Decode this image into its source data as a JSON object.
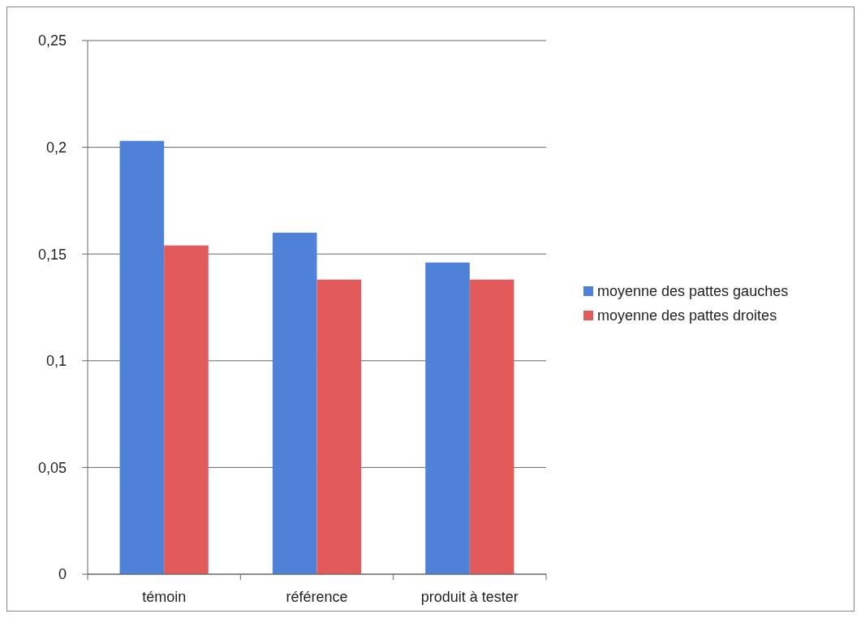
{
  "chart_data": {
    "type": "bar",
    "categories": [
      "témoin",
      "référence",
      "produit à tester"
    ],
    "series": [
      {
        "name": "moyenne des pattes gauches",
        "color": "#4f81d9",
        "values": [
          0.203,
          0.16,
          0.146
        ]
      },
      {
        "name": "moyenne des pattes droites",
        "color": "#e35a5a",
        "values": [
          0.154,
          0.138,
          0.138
        ]
      }
    ],
    "ylim": [
      0,
      0.25
    ],
    "yticks": [
      0,
      {
        "value": 0.05,
        "label": "0,05"
      },
      {
        "value": 0.1,
        "label": "0,1"
      },
      {
        "value": 0.15,
        "label": "0,15"
      },
      {
        "value": 0.2,
        "label": "0,2"
      },
      {
        "value": 0.25,
        "label": "0,25"
      }
    ],
    "grid": "y",
    "legend": "right"
  }
}
